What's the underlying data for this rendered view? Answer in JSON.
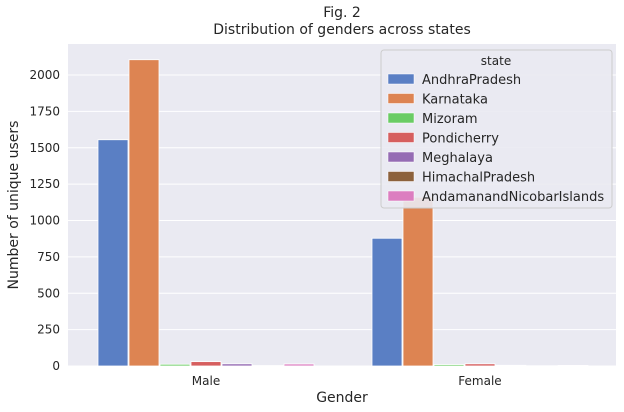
{
  "chart_data": {
    "type": "bar",
    "title": "Fig. 2",
    "subtitle": "Distribution of genders across states",
    "xlabel": "Gender",
    "ylabel": "Number of unique users",
    "categories": [
      "Male",
      "Female"
    ],
    "ylim": [
      0,
      2200
    ],
    "yticks": [
      0,
      250,
      500,
      750,
      1000,
      1250,
      1500,
      1750,
      2000
    ],
    "grid": true,
    "legend_title": "state",
    "legend_position": "top-right",
    "series": [
      {
        "name": "AndhraPradesh",
        "color": "#5a7fc4",
        "values": [
          1555,
          878
        ]
      },
      {
        "name": "Karnataka",
        "color": "#dd8452",
        "values": [
          2105,
          1160
        ]
      },
      {
        "name": "Mizoram",
        "color": "#6acc64",
        "values": [
          12,
          10
        ]
      },
      {
        "name": "Pondicherry",
        "color": "#d65f5f",
        "values": [
          30,
          15
        ]
      },
      {
        "name": "Meghalaya",
        "color": "#956cb4",
        "values": [
          15,
          5
        ]
      },
      {
        "name": "HimachalPradesh",
        "color": "#8c613c",
        "values": [
          3,
          2
        ]
      },
      {
        "name": "AndamanandNicobarIslands",
        "color": "#dc7ec0",
        "values": [
          14,
          4
        ]
      }
    ]
  }
}
